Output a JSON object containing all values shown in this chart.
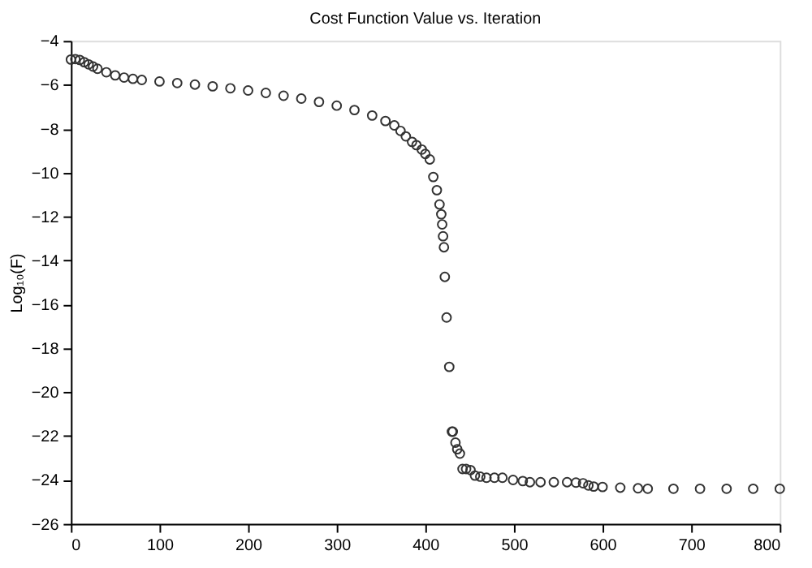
{
  "chart_data": {
    "type": "scatter",
    "title": "Cost Function Value vs. Iteration",
    "ylabel": "Log₁₀(F)",
    "x": [
      0,
      5,
      10,
      15,
      20,
      25,
      30,
      40,
      50,
      60,
      70,
      80,
      100,
      120,
      140,
      160,
      180,
      200,
      220,
      240,
      260,
      280,
      300,
      320,
      340,
      355,
      365,
      372,
      378,
      385,
      390,
      396,
      400,
      405,
      409,
      413,
      416,
      418,
      419,
      420,
      421,
      422,
      424,
      427,
      430,
      431,
      434,
      436,
      439,
      442,
      446,
      451,
      456,
      462,
      469,
      478,
      487,
      499,
      510,
      518,
      530,
      545,
      560,
      570,
      578,
      584,
      590,
      600,
      620,
      640,
      651,
      680,
      710,
      740,
      770,
      800
    ],
    "series": [
      {
        "color": "#333333",
        "values": [
          -4.85,
          -4.83,
          -4.87,
          -4.97,
          -5.07,
          -5.17,
          -5.27,
          -5.43,
          -5.57,
          -5.67,
          -5.73,
          -5.78,
          -5.85,
          -5.92,
          -5.99,
          -6.07,
          -6.16,
          -6.26,
          -6.37,
          -6.5,
          -6.63,
          -6.78,
          -6.95,
          -7.15,
          -7.4,
          -7.65,
          -7.85,
          -8.1,
          -8.35,
          -8.6,
          -8.75,
          -8.95,
          -9.15,
          -9.4,
          -10.2,
          -10.8,
          -11.45,
          -11.9,
          -12.36,
          -12.9,
          -13.4,
          -14.75,
          -16.6,
          -18.85,
          -21.8,
          -21.8,
          -22.3,
          -22.6,
          -22.8,
          -23.5,
          -23.5,
          -23.55,
          -23.8,
          -23.85,
          -23.9,
          -23.9,
          -23.9,
          -24.0,
          -24.05,
          -24.1,
          -24.1,
          -24.1,
          -24.1,
          -24.12,
          -24.15,
          -24.25,
          -24.3,
          -24.32,
          -24.35,
          -24.38,
          -24.4,
          -24.4,
          -24.4,
          -24.4,
          -24.4,
          -24.4
        ]
      }
    ],
    "xlim": [
      0,
      800
    ],
    "xticks": [
      0,
      100,
      200,
      300,
      400,
      500,
      600,
      700,
      800
    ],
    "ylim": [
      -26,
      -4
    ],
    "yticks": [
      -26,
      -24,
      -22,
      -20,
      -18,
      -16,
      -14,
      -12,
      -10,
      -8,
      -6,
      -4
    ],
    "grid": false,
    "legend": false,
    "marker": "circle"
  }
}
